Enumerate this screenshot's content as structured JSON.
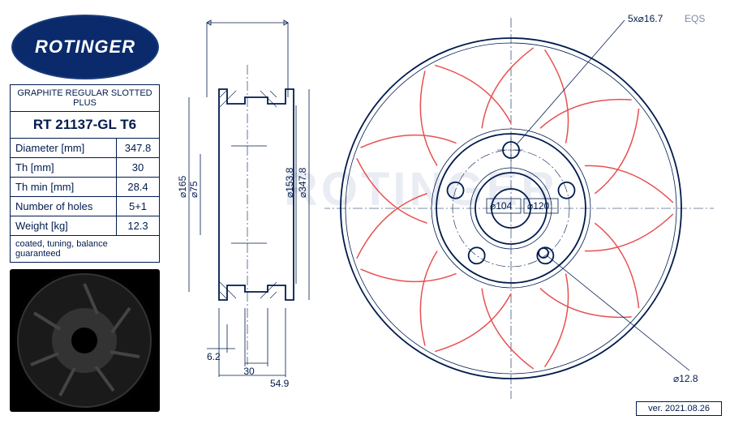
{
  "brand": {
    "name": "ROTINGER",
    "reg": "®"
  },
  "product": {
    "type_label": "GRAPHITE REGULAR SLOTTED PLUS",
    "part_number": "RT 21137-GL T6",
    "note": "coated, tuning, balance guaranteed"
  },
  "specs": [
    {
      "label": "Diameter [mm]",
      "value": "347.8"
    },
    {
      "label": "Th [mm]",
      "value": "30"
    },
    {
      "label": "Th min [mm]",
      "value": "28.4"
    },
    {
      "label": "Number of holes",
      "value": "5+1"
    },
    {
      "label": "Weight [kg]",
      "value": "12.3"
    }
  ],
  "side_dims": {
    "d165": "⌀165",
    "d75": "⌀75",
    "d153_8": "⌀153.8",
    "d347_8": "⌀347.8",
    "t6_2": "6.2",
    "t30": "30",
    "t54_9": "54.9"
  },
  "front_dims": {
    "bolt_pattern": "5x⌀16.7",
    "eqs": "EQS",
    "d104": "⌀104",
    "d120": "⌀120",
    "d12_8": "⌀12.8"
  },
  "version": "ver. 2021.08.26",
  "colors": {
    "navy": "#001b4d",
    "logo_bg": "#0a2a6b",
    "slot": "#e85050",
    "watermark": "rgba(70,100,160,0.12)"
  },
  "drawing": {
    "outer_d": 347.8,
    "hub_d": 165,
    "bore_d": 75,
    "step_d": 153.8,
    "bolt_circle": 120,
    "bolt_hole_d": 16.7,
    "bolt_count": 5,
    "slot_count_per_side": 9
  }
}
